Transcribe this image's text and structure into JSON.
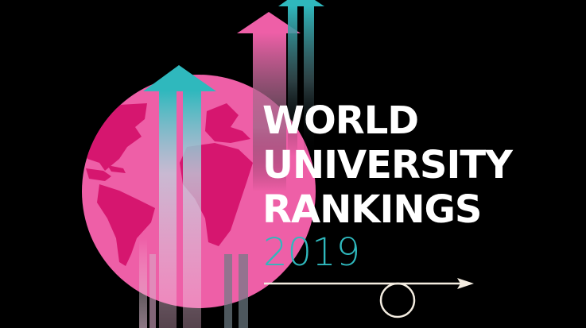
{
  "title_lines": [
    "WORLD",
    "UNIVERSITY",
    "RANKINGS"
  ],
  "year": "2019",
  "colors": {
    "background": "#000000",
    "globe": "#ee5fa7",
    "continents": "#d6166f",
    "teal": "#2fb8bd",
    "pink": "#ee5fa7",
    "timeline": "#f3ece0"
  },
  "icons": [
    "globe-icon",
    "up-arrow-icon",
    "timeline-arrow-icon",
    "circle-marker-icon"
  ]
}
